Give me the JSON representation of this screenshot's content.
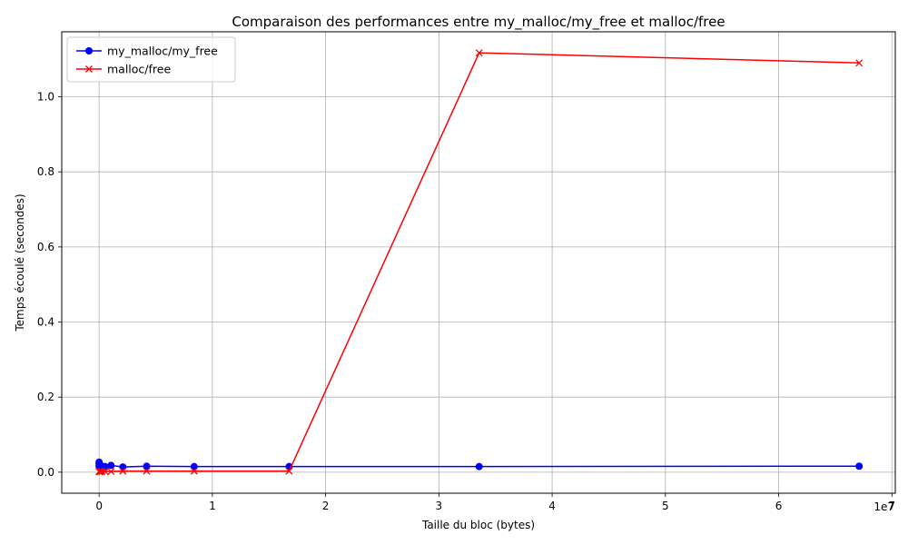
{
  "chart_data": {
    "type": "line",
    "title": "Comparaison des performances entre my_malloc/my_free et malloc/free",
    "xlabel": "Taille du bloc (bytes)",
    "ylabel": "Temps écoulé (secondes)",
    "x_offset_text": "1e7",
    "xlim": [
      -3300000,
      70300000
    ],
    "ylim": [
      -0.056,
      1.173
    ],
    "xticks": [
      0,
      10000000,
      20000000,
      30000000,
      40000000,
      50000000,
      60000000,
      70000000
    ],
    "xtick_labels": [
      "0",
      "1",
      "2",
      "3",
      "4",
      "5",
      "6",
      "7"
    ],
    "yticks": [
      0.0,
      0.2,
      0.4,
      0.6,
      0.8,
      1.0
    ],
    "ytick_labels": [
      "0.0",
      "0.2",
      "0.4",
      "0.6",
      "0.8",
      "1.0"
    ],
    "grid": true,
    "legend_position": "top-left",
    "x": [
      1024,
      2048,
      4096,
      8192,
      16384,
      32768,
      65536,
      131072,
      262144,
      524288,
      1048576,
      2097152,
      4194304,
      8388608,
      16777216,
      33554432,
      67108864
    ],
    "series": [
      {
        "name": "my_malloc/my_free",
        "color": "#0000ff",
        "marker": "circle",
        "values": [
          0.027,
          0.022,
          0.018,
          0.016,
          0.015,
          0.014,
          0.014,
          0.014,
          0.016,
          0.015,
          0.018,
          0.014,
          0.016,
          0.015,
          0.015,
          0.015,
          0.016
        ]
      },
      {
        "name": "malloc/free",
        "color": "#ff0000",
        "marker": "x",
        "values": [
          0.002,
          0.002,
          0.002,
          0.002,
          0.002,
          0.002,
          0.002,
          0.002,
          0.002,
          0.002,
          0.002,
          0.003,
          0.003,
          0.003,
          0.003,
          1.117,
          1.09
        ]
      }
    ]
  }
}
